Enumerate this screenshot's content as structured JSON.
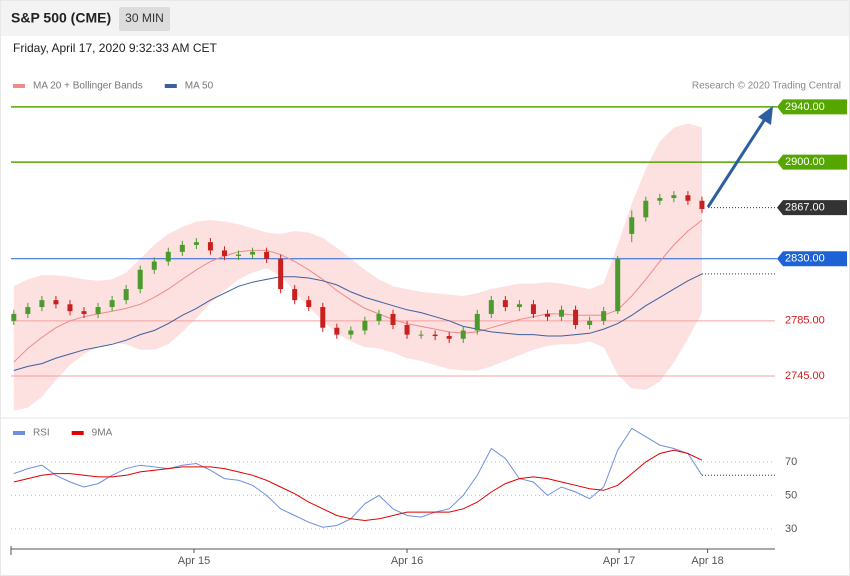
{
  "header": {
    "title": "S&P 500 (CME)",
    "interval": "30 MIN",
    "date": "Friday, April 17, 2020 9:32:33 AM CET"
  },
  "chart_data": [
    {
      "type": "candlestick",
      "credit": "Research © 2020 Trading Central",
      "xlim": [
        -0.2,
        54.2
      ],
      "ylim": [
        2717.5,
        2945
      ],
      "up_color": "#4a9a2c",
      "down_color": "#c9201f",
      "open": [
        2785,
        2790,
        2795,
        2800,
        2797,
        2792,
        2790,
        2795,
        2800,
        2808,
        2822,
        2828,
        2835,
        2840,
        2842,
        2836,
        2832,
        2833,
        2835,
        2830,
        2808,
        2800,
        2795,
        2780,
        2775,
        2778,
        2785,
        2790,
        2782,
        2775,
        2775,
        2774,
        2772,
        2778,
        2790,
        2800,
        2795,
        2797,
        2790,
        2788,
        2793,
        2782,
        2785,
        2792,
        2848,
        2860,
        2872,
        2874,
        2876,
        2872
      ],
      "high": [
        2793,
        2798,
        2803,
        2803,
        2800,
        2795,
        2798,
        2803,
        2811,
        2825,
        2831,
        2838,
        2843,
        2845,
        2845,
        2839,
        2836,
        2838,
        2838,
        2833,
        2811,
        2803,
        2798,
        2783,
        2781,
        2788,
        2793,
        2793,
        2785,
        2778,
        2778,
        2777,
        2781,
        2793,
        2803,
        2803,
        2800,
        2800,
        2793,
        2796,
        2796,
        2788,
        2795,
        2832,
        2865,
        2875,
        2877,
        2879,
        2879,
        2875
      ],
      "low": [
        2782,
        2787,
        2792,
        2794,
        2789,
        2787,
        2787,
        2792,
        2797,
        2805,
        2819,
        2825,
        2832,
        2837,
        2833,
        2829,
        2829,
        2830,
        2827,
        2805,
        2797,
        2792,
        2777,
        2772,
        2772,
        2775,
        2782,
        2779,
        2772,
        2772,
        2771,
        2769,
        2769,
        2775,
        2787,
        2792,
        2792,
        2787,
        2785,
        2785,
        2779,
        2779,
        2782,
        2790,
        2842,
        2857,
        2869,
        2871,
        2869,
        2863
      ],
      "close": [
        2790,
        2795,
        2800,
        2797,
        2792,
        2790,
        2795,
        2800,
        2808,
        2822,
        2828,
        2835,
        2840,
        2842,
        2836,
        2832,
        2833,
        2835,
        2830,
        2808,
        2800,
        2795,
        2780,
        2775,
        2778,
        2785,
        2790,
        2782,
        2775,
        2775,
        2774,
        2772,
        2778,
        2790,
        2800,
        2795,
        2797,
        2790,
        2788,
        2793,
        2782,
        2785,
        2792,
        2830,
        2860,
        2872,
        2874,
        2876,
        2872,
        2866
      ],
      "band_color": "#fde0e0",
      "band_upper": [
        2810,
        2815,
        2818,
        2818,
        2817,
        2815,
        2814,
        2815,
        2820,
        2830,
        2840,
        2848,
        2853,
        2857,
        2858,
        2857,
        2855,
        2852,
        2849,
        2848,
        2850,
        2849,
        2845,
        2838,
        2830,
        2822,
        2815,
        2810,
        2808,
        2806,
        2805,
        2804,
        2803,
        2805,
        2808,
        2810,
        2812,
        2812,
        2813,
        2812,
        2810,
        2808,
        2812,
        2840,
        2870,
        2895,
        2915,
        2925,
        2928,
        2925
      ],
      "band_lower": [
        2720,
        2722,
        2730,
        2742,
        2753,
        2761,
        2766,
        2769,
        2768,
        2764,
        2764,
        2768,
        2777,
        2787,
        2798,
        2807,
        2815,
        2820,
        2823,
        2818,
        2806,
        2795,
        2785,
        2776,
        2770,
        2766,
        2765,
        2762,
        2758,
        2756,
        2753,
        2750,
        2749,
        2749,
        2752,
        2756,
        2760,
        2764,
        2767,
        2768,
        2768,
        2770,
        2766,
        2746,
        2736,
        2735,
        2741,
        2755,
        2772,
        2791
      ],
      "series": [
        {
          "name": "MA 20 + Bollinger Bands",
          "color": "#f08a8a",
          "values": [
            2755,
            2765,
            2773,
            2780,
            2785,
            2788,
            2790,
            2792,
            2794,
            2797,
            2802,
            2808,
            2815,
            2822,
            2828,
            2832,
            2835,
            2836,
            2836,
            2833,
            2828,
            2822,
            2815,
            2807,
            2800,
            2794,
            2790,
            2786,
            2783,
            2781,
            2779,
            2777,
            2776,
            2777,
            2780,
            2783,
            2786,
            2788,
            2790,
            2790,
            2789,
            2789,
            2789,
            2793,
            2803,
            2815,
            2828,
            2840,
            2850,
            2858
          ]
        },
        {
          "name": "MA 50",
          "color": "#3d5f9e",
          "values": [
            2749,
            2752,
            2754,
            2758,
            2761,
            2764,
            2766,
            2768,
            2771,
            2775,
            2778,
            2783,
            2789,
            2794,
            2800,
            2805,
            2810,
            2813,
            2815,
            2817,
            2817,
            2816,
            2814,
            2811,
            2806,
            2802,
            2799,
            2796,
            2793,
            2791,
            2788,
            2785,
            2781,
            2779,
            2777,
            2776,
            2775,
            2775,
            2774,
            2774,
            2775,
            2776,
            2779,
            2783,
            2789,
            2796,
            2802,
            2808,
            2814,
            2819
          ]
        }
      ],
      "levels": [
        {
          "value": 2940,
          "label": "2940.00",
          "color": "#55a600",
          "boxed": true
        },
        {
          "value": 2900,
          "label": "2900.00",
          "color": "#55a600",
          "boxed": true
        },
        {
          "value": 2867,
          "label": "2867.00",
          "color": "#333333",
          "boxed": true
        },
        {
          "value": 2830,
          "label": "2830.00",
          "color": "#1e63d6",
          "boxed": true
        },
        {
          "value": 2785,
          "label": "2785.00",
          "color": "#d21c1c",
          "boxed": false
        },
        {
          "value": 2745,
          "label": "2745.00",
          "color": "#d21c1c",
          "boxed": false
        }
      ]
    },
    {
      "type": "line",
      "xlim": [
        -0.2,
        54.2
      ],
      "ylim": [
        20,
        95
      ],
      "yticks": [
        70,
        50,
        30
      ],
      "xticks": [
        {
          "value": 12.83,
          "label": "Apr 15"
        },
        {
          "value": 28,
          "label": "Apr 16"
        },
        {
          "value": 43.1,
          "label": "Apr 17"
        },
        {
          "value": 49.4,
          "label": "Apr 18"
        }
      ],
      "series": [
        {
          "name": "RSI",
          "color": "#6f8fdc",
          "values": [
            63,
            66,
            68,
            62,
            58,
            55,
            57,
            62,
            66,
            68,
            67,
            66,
            68,
            69,
            65,
            60,
            59,
            56,
            50,
            42,
            38,
            34,
            31,
            32,
            36,
            45,
            50,
            42,
            38,
            37,
            40,
            42,
            50,
            62,
            78,
            72,
            60,
            58,
            50,
            55,
            52,
            48,
            55,
            77,
            90,
            85,
            80,
            78,
            75,
            62
          ]
        },
        {
          "name": "9MA",
          "color": "#e00000",
          "values": [
            58,
            60,
            62,
            63,
            63,
            62,
            61,
            61,
            62,
            64,
            65,
            66,
            67,
            67,
            67,
            66,
            64,
            62,
            59,
            55,
            51,
            46,
            42,
            38,
            36,
            35,
            36,
            38,
            40,
            40,
            40,
            40,
            42,
            46,
            52,
            57,
            60,
            61,
            60,
            58,
            56,
            54,
            53,
            56,
            63,
            70,
            75,
            77,
            75,
            71
          ]
        }
      ]
    }
  ]
}
